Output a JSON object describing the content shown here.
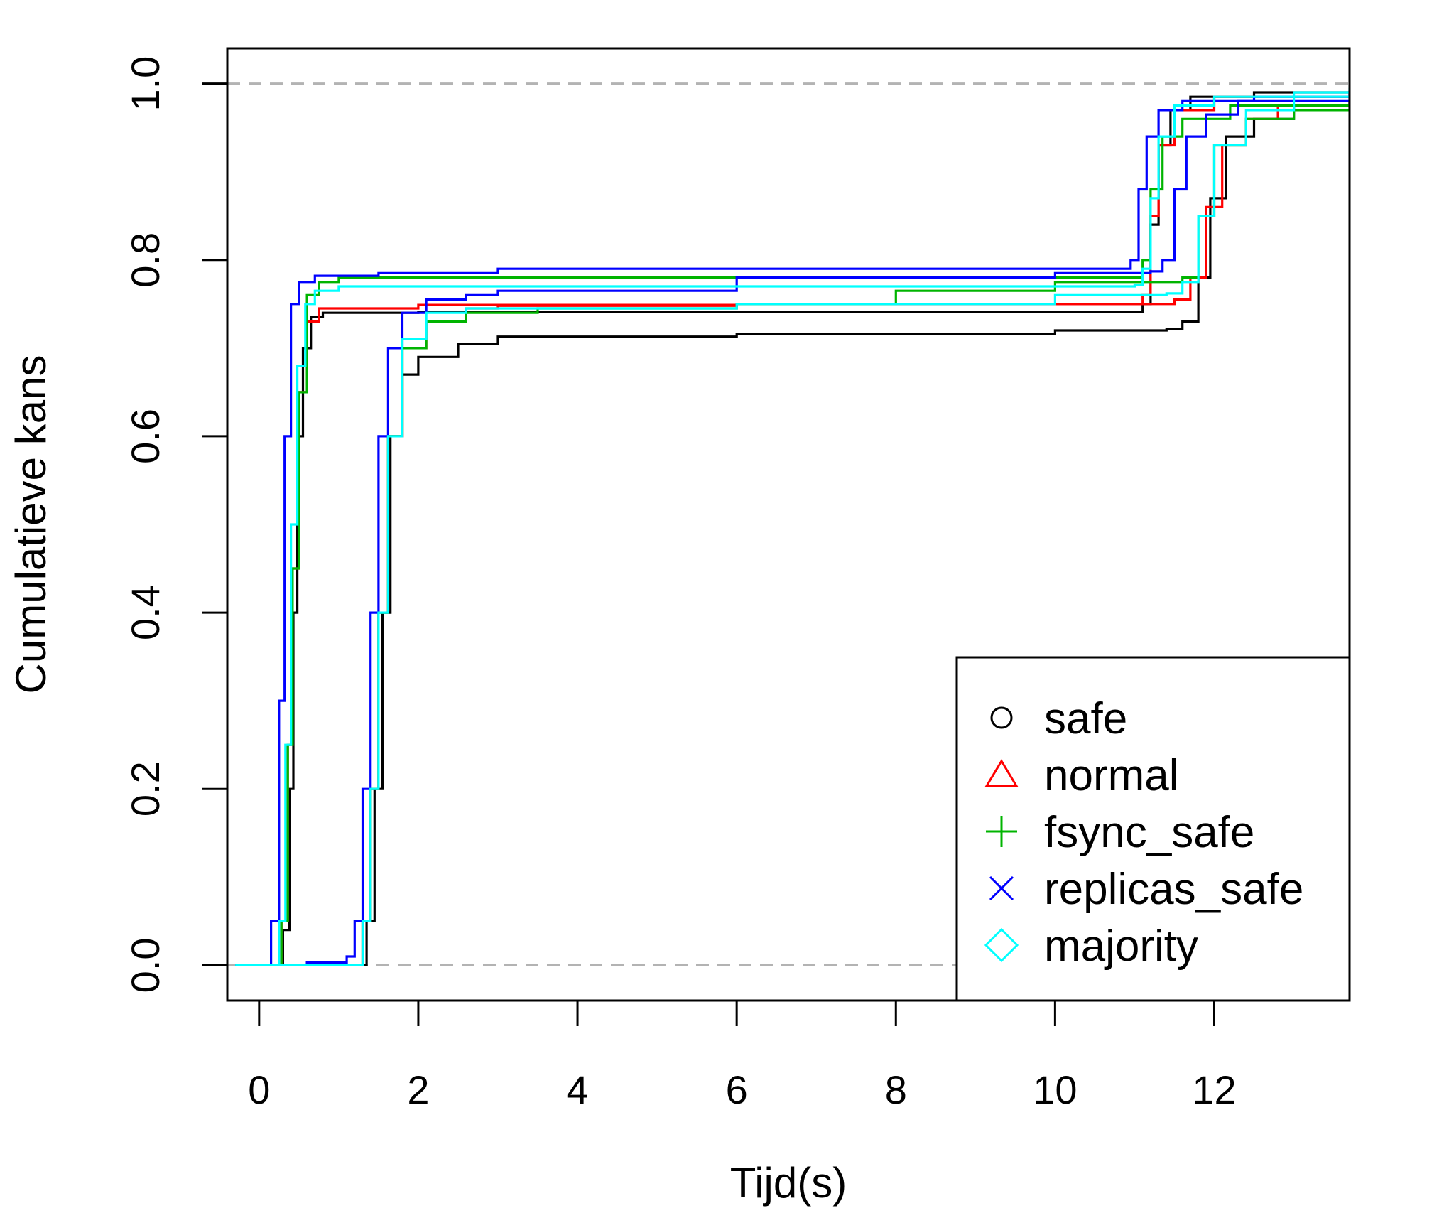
{
  "chart_data": {
    "type": "line",
    "title": "",
    "xlabel": "Tijd(s)",
    "ylabel": "Cumulatieve kans",
    "xlim": [
      -0.4,
      13.7
    ],
    "ylim": [
      -0.04,
      1.04
    ],
    "xticks": [
      0,
      2,
      4,
      6,
      8,
      10,
      12
    ],
    "yticks": [
      "0.0",
      "0.2",
      "0.4",
      "0.6",
      "0.8",
      "1.0"
    ],
    "reference_lines": [
      0,
      1
    ],
    "reference_line_color": "#b3b3b3",
    "grid": false,
    "legend_position": "bottom-right",
    "series": [
      {
        "name": "safe",
        "color": "#000000",
        "marker": "circle",
        "curves": [
          [
            [
              -0.3,
              0
            ],
            [
              0.2,
              0
            ],
            [
              0.3,
              0.04
            ],
            [
              0.38,
              0.2
            ],
            [
              0.43,
              0.4
            ],
            [
              0.48,
              0.6
            ],
            [
              0.55,
              0.7
            ],
            [
              0.65,
              0.735
            ],
            [
              0.8,
              0.74
            ],
            [
              2,
              0.741
            ],
            [
              6,
              0.741
            ],
            [
              10,
              0.741
            ],
            [
              11,
              0.741
            ],
            [
              11.1,
              0.75
            ],
            [
              11.2,
              0.84
            ],
            [
              11.3,
              0.93
            ],
            [
              11.45,
              0.97
            ],
            [
              11.7,
              0.985
            ],
            [
              12.5,
              0.99
            ],
            [
              13.7,
              0.992
            ]
          ],
          [
            [
              -0.3,
              0
            ],
            [
              1.25,
              0
            ],
            [
              1.35,
              0.05
            ],
            [
              1.45,
              0.2
            ],
            [
              1.55,
              0.4
            ],
            [
              1.65,
              0.6
            ],
            [
              1.8,
              0.67
            ],
            [
              2,
              0.69
            ],
            [
              2.5,
              0.705
            ],
            [
              3,
              0.713
            ],
            [
              6,
              0.716
            ],
            [
              10,
              0.72
            ],
            [
              11.4,
              0.722
            ],
            [
              11.6,
              0.73
            ],
            [
              11.8,
              0.78
            ],
            [
              11.95,
              0.87
            ],
            [
              12.15,
              0.94
            ],
            [
              12.5,
              0.96
            ],
            [
              13,
              0.975
            ],
            [
              13.7,
              0.98
            ]
          ]
        ]
      },
      {
        "name": "normal",
        "color": "#ff0000",
        "marker": "triangle",
        "curves": [
          [
            [
              -0.3,
              0
            ],
            [
              0.2,
              0
            ],
            [
              0.28,
              0.05
            ],
            [
              0.36,
              0.25
            ],
            [
              0.42,
              0.45
            ],
            [
              0.5,
              0.65
            ],
            [
              0.6,
              0.73
            ],
            [
              0.75,
              0.745
            ],
            [
              2,
              0.749
            ],
            [
              6,
              0.75
            ],
            [
              11,
              0.75
            ],
            [
              11.1,
              0.76
            ],
            [
              11.2,
              0.85
            ],
            [
              11.3,
              0.93
            ],
            [
              11.5,
              0.97
            ],
            [
              12,
              0.985
            ],
            [
              13.7,
              0.99
            ]
          ],
          [
            [
              -0.3,
              0
            ],
            [
              1.2,
              0
            ],
            [
              1.3,
              0.05
            ],
            [
              1.4,
              0.2
            ],
            [
              1.5,
              0.4
            ],
            [
              1.62,
              0.6
            ],
            [
              1.8,
              0.7
            ],
            [
              2.1,
              0.73
            ],
            [
              2.6,
              0.745
            ],
            [
              3,
              0.748
            ],
            [
              6,
              0.75
            ],
            [
              11,
              0.75
            ],
            [
              11.5,
              0.755
            ],
            [
              11.7,
              0.78
            ],
            [
              11.9,
              0.86
            ],
            [
              12.1,
              0.93
            ],
            [
              12.4,
              0.96
            ],
            [
              12.8,
              0.975
            ],
            [
              13.7,
              0.98
            ]
          ]
        ]
      },
      {
        "name": "fsync_safe",
        "color": "#00b400",
        "marker": "plus",
        "curves": [
          [
            [
              -0.3,
              0
            ],
            [
              0.2,
              0
            ],
            [
              0.28,
              0.05
            ],
            [
              0.36,
              0.25
            ],
            [
              0.42,
              0.45
            ],
            [
              0.5,
              0.65
            ],
            [
              0.6,
              0.76
            ],
            [
              0.75,
              0.775
            ],
            [
              1,
              0.78
            ],
            [
              6,
              0.78
            ],
            [
              11,
              0.78
            ],
            [
              11.1,
              0.8
            ],
            [
              11.2,
              0.88
            ],
            [
              11.35,
              0.94
            ],
            [
              11.6,
              0.96
            ],
            [
              12.2,
              0.975
            ],
            [
              13.7,
              0.98
            ]
          ],
          [
            [
              -0.3,
              0
            ],
            [
              1.2,
              0
            ],
            [
              1.3,
              0.05
            ],
            [
              1.4,
              0.2
            ],
            [
              1.5,
              0.4
            ],
            [
              1.62,
              0.6
            ],
            [
              1.8,
              0.7
            ],
            [
              2.1,
              0.73
            ],
            [
              2.6,
              0.74
            ],
            [
              3.5,
              0.745
            ],
            [
              6,
              0.75
            ],
            [
              8,
              0.765
            ],
            [
              10,
              0.775
            ],
            [
              11.4,
              0.775
            ],
            [
              11.6,
              0.78
            ],
            [
              11.8,
              0.85
            ],
            [
              12,
              0.93
            ],
            [
              12.4,
              0.96
            ],
            [
              13,
              0.97
            ],
            [
              13.7,
              0.975
            ]
          ]
        ]
      },
      {
        "name": "replicas_safe",
        "color": "#0000ff",
        "marker": "cross",
        "curves": [
          [
            [
              -0.3,
              0
            ],
            [
              0.05,
              0
            ],
            [
              0.15,
              0.05
            ],
            [
              0.25,
              0.3
            ],
            [
              0.32,
              0.6
            ],
            [
              0.4,
              0.75
            ],
            [
              0.5,
              0.775
            ],
            [
              0.7,
              0.782
            ],
            [
              1.5,
              0.785
            ],
            [
              3,
              0.79
            ],
            [
              6,
              0.79
            ],
            [
              10.8,
              0.79
            ],
            [
              10.95,
              0.8
            ],
            [
              11.05,
              0.88
            ],
            [
              11.15,
              0.94
            ],
            [
              11.3,
              0.97
            ],
            [
              11.6,
              0.98
            ],
            [
              12.5,
              0.985
            ],
            [
              13.7,
              0.99
            ]
          ],
          [
            [
              -0.3,
              0
            ],
            [
              0.3,
              0
            ],
            [
              0.6,
              0.003
            ],
            [
              1.1,
              0.01
            ],
            [
              1.2,
              0.05
            ],
            [
              1.3,
              0.2
            ],
            [
              1.4,
              0.4
            ],
            [
              1.5,
              0.6
            ],
            [
              1.62,
              0.7
            ],
            [
              1.8,
              0.74
            ],
            [
              2.1,
              0.755
            ],
            [
              2.6,
              0.76
            ],
            [
              3,
              0.765
            ],
            [
              6,
              0.78
            ],
            [
              10,
              0.785
            ],
            [
              11.2,
              0.787
            ],
            [
              11.35,
              0.8
            ],
            [
              11.5,
              0.88
            ],
            [
              11.65,
              0.94
            ],
            [
              11.9,
              0.965
            ],
            [
              12.3,
              0.98
            ],
            [
              13.7,
              0.985
            ]
          ]
        ]
      },
      {
        "name": "majority",
        "color": "#00ffff",
        "marker": "diamond",
        "curves": [
          [
            [
              -0.3,
              0
            ],
            [
              0.15,
              0
            ],
            [
              0.25,
              0.05
            ],
            [
              0.33,
              0.25
            ],
            [
              0.4,
              0.5
            ],
            [
              0.48,
              0.68
            ],
            [
              0.58,
              0.75
            ],
            [
              0.7,
              0.765
            ],
            [
              1,
              0.77
            ],
            [
              6,
              0.77
            ],
            [
              11,
              0.772
            ],
            [
              11.1,
              0.79
            ],
            [
              11.2,
              0.87
            ],
            [
              11.3,
              0.94
            ],
            [
              11.5,
              0.975
            ],
            [
              12,
              0.985
            ],
            [
              13.7,
              0.99
            ]
          ],
          [
            [
              -0.3,
              0
            ],
            [
              1.2,
              0
            ],
            [
              1.3,
              0.05
            ],
            [
              1.4,
              0.2
            ],
            [
              1.5,
              0.4
            ],
            [
              1.62,
              0.6
            ],
            [
              1.8,
              0.71
            ],
            [
              2.1,
              0.74
            ],
            [
              2.6,
              0.745
            ],
            [
              3.5,
              0.745
            ],
            [
              6,
              0.75
            ],
            [
              10,
              0.76
            ],
            [
              11.4,
              0.762
            ],
            [
              11.6,
              0.775
            ],
            [
              11.8,
              0.85
            ],
            [
              12,
              0.93
            ],
            [
              12.4,
              0.97
            ],
            [
              13,
              0.99
            ],
            [
              13.7,
              0.995
            ]
          ]
        ]
      }
    ]
  }
}
